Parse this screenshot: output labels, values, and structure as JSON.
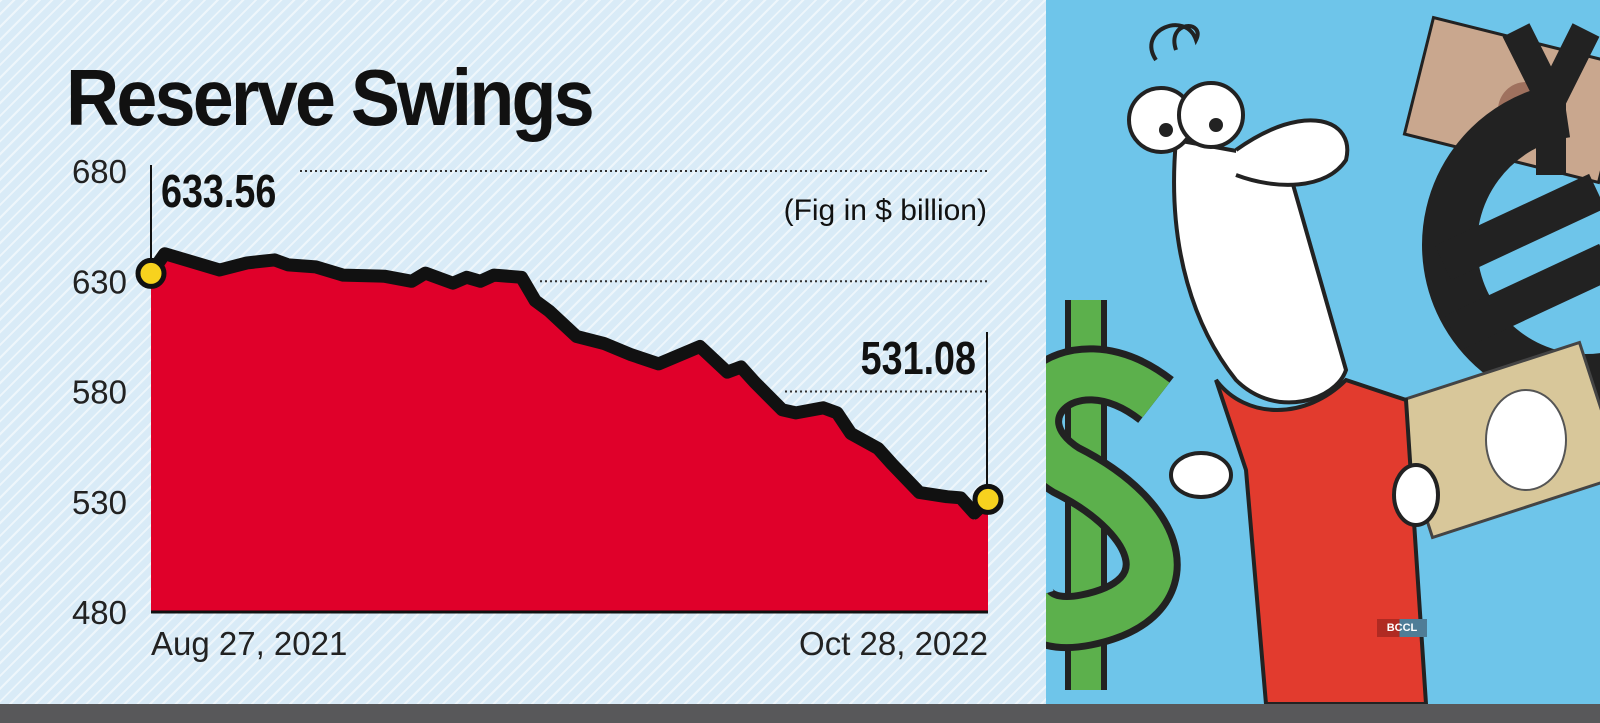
{
  "chart_data": {
    "type": "area",
    "title": "Reserve Swings",
    "unit_note": "(Fig in $ billion)",
    "xlabel": "",
    "ylabel": "",
    "ylim": [
      480,
      680
    ],
    "yticks": [
      "680",
      "630",
      "580",
      "530",
      "480"
    ],
    "xticks": [
      "Aug 27, 2021",
      "Oct 28, 2022"
    ],
    "grid": "dotted reference lines at labelled values",
    "annotations": [
      {
        "label": "633.56",
        "date": "2021-08-27",
        "value": 633.56
      },
      {
        "label": "531.08",
        "date": "2022-10-28",
        "value": 531.08
      }
    ],
    "colors": {
      "fill": "#e0002a",
      "line": "#111111",
      "marker": "#f7d21e",
      "background": "#d9ebf7"
    },
    "series": [
      {
        "x": [
          "2021-08-27",
          "2021-09-03",
          "2021-10-01",
          "2021-10-15",
          "2021-10-29",
          "2021-11-05",
          "2021-11-19",
          "2021-12-03",
          "2021-12-24",
          "2022-01-07",
          "2022-01-14",
          "2022-01-28",
          "2022-02-04",
          "2022-02-11",
          "2022-02-18",
          "2022-03-04",
          "2022-03-11",
          "2022-03-18",
          "2022-04-01",
          "2022-04-15",
          "2022-04-29",
          "2022-05-13",
          "2022-06-03",
          "2022-06-17",
          "2022-06-24",
          "2022-07-01",
          "2022-07-15",
          "2022-07-22",
          "2022-08-05",
          "2022-08-12",
          "2022-08-19",
          "2022-09-02",
          "2022-09-09",
          "2022-09-23",
          "2022-10-07",
          "2022-10-14",
          "2022-10-21",
          "2022-10-28"
        ],
        "values": [
          633.56,
          642.5,
          635.1,
          638.3,
          639.7,
          637.4,
          636.5,
          632.8,
          632.3,
          630.0,
          633.7,
          629.1,
          631.8,
          630.0,
          632.8,
          631.8,
          621.2,
          616.6,
          605.0,
          601.8,
          596.7,
          592.5,
          600.4,
          588.8,
          591.1,
          584.2,
          571.7,
          570.3,
          572.6,
          570.3,
          561.0,
          554.1,
          547.1,
          534.2,
          532.3,
          531.8,
          524.9,
          531.08
        ]
      }
    ]
  },
  "illustration": {
    "description_icons": [
      "cartoon-man-icon",
      "dollar-sign-icon",
      "euro-sign-icon",
      "yen-sign-icon",
      "banknote-icon"
    ],
    "watermark": "BCCL",
    "colors": {
      "sky": "#6ec5ea",
      "shirt": "#e23b2e",
      "dollar": "#5cb04c"
    }
  }
}
